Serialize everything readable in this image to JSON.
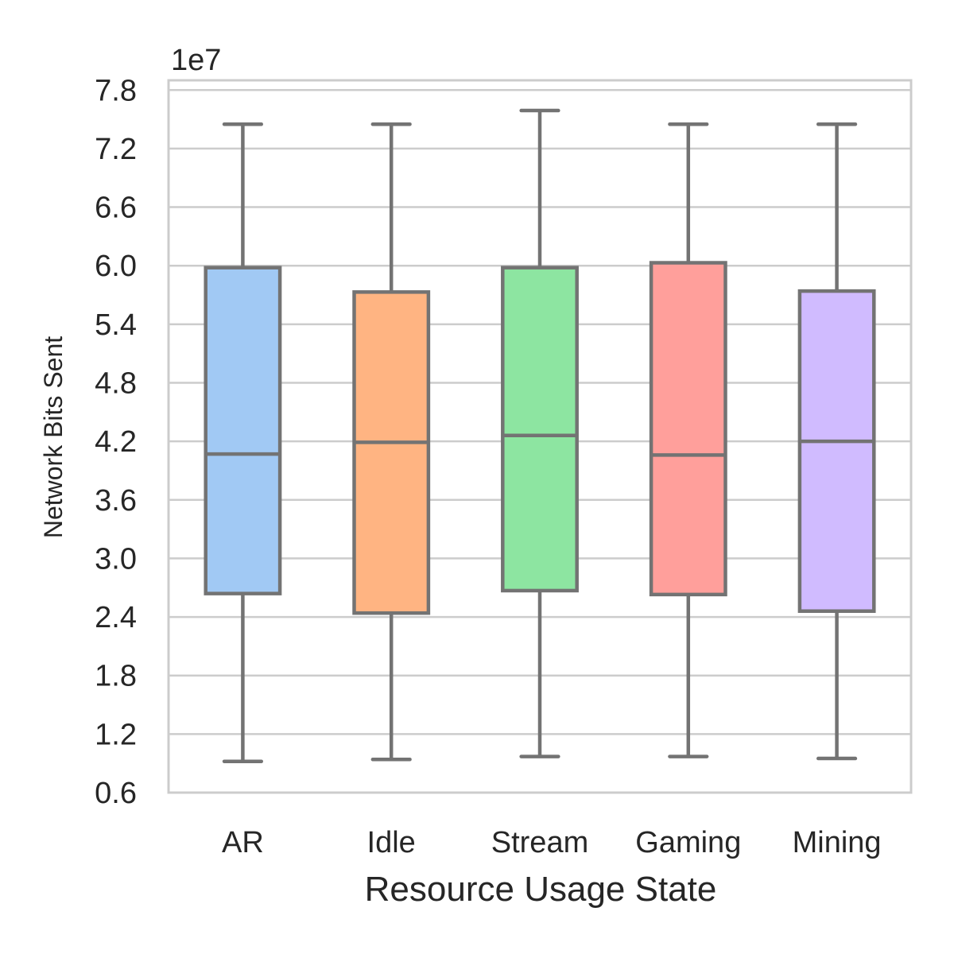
{
  "chart_data": {
    "type": "box",
    "title": "",
    "xlabel": "Resource Usage State",
    "ylabel": "Network Bits Sent",
    "y_offset_label": "1e7",
    "ylim": [
      0.6,
      7.9
    ],
    "yticks": [
      "0.6",
      "1.2",
      "1.8",
      "2.4",
      "3.0",
      "3.6",
      "4.2",
      "4.8",
      "5.4",
      "6.0",
      "6.6",
      "7.2",
      "7.8"
    ],
    "grid": true,
    "categories": [
      "AR",
      "Idle",
      "Stream",
      "Gaming",
      "Mining"
    ],
    "colors": [
      "#a1c9f4",
      "#ffb482",
      "#8de5a1",
      "#ff9f9b",
      "#d0bbff"
    ],
    "edge_color": "#737373",
    "boxes": [
      {
        "category": "AR",
        "whisker_low": 0.92,
        "q1": 2.64,
        "median": 4.07,
        "q3": 5.98,
        "whisker_high": 7.45
      },
      {
        "category": "Idle",
        "whisker_low": 0.94,
        "q1": 2.44,
        "median": 4.19,
        "q3": 5.73,
        "whisker_high": 7.45
      },
      {
        "category": "Stream",
        "whisker_low": 0.97,
        "q1": 2.67,
        "median": 4.26,
        "q3": 5.98,
        "whisker_high": 7.59
      },
      {
        "category": "Gaming",
        "whisker_low": 0.97,
        "q1": 2.63,
        "median": 4.06,
        "q3": 6.03,
        "whisker_high": 7.45
      },
      {
        "category": "Mining",
        "whisker_low": 0.95,
        "q1": 2.46,
        "median": 4.2,
        "q3": 5.74,
        "whisker_high": 7.45
      }
    ]
  }
}
